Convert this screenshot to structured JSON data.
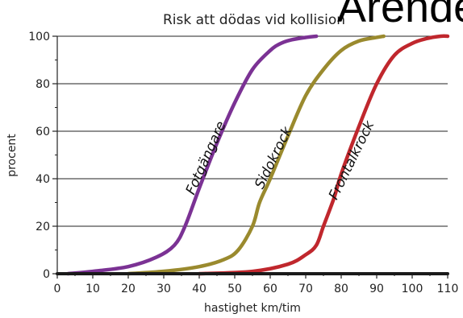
{
  "overlay_text": "Ärende",
  "chart_data": {
    "type": "line",
    "title": "Risk att dödas vid kollision",
    "xlabel": "hastighet km/tim",
    "ylabel": "procent",
    "xlim": [
      0,
      110
    ],
    "ylim": [
      0,
      100
    ],
    "x_ticks": [
      0,
      10,
      20,
      30,
      40,
      50,
      60,
      70,
      80,
      90,
      100,
      110
    ],
    "y_ticks": [
      0,
      20,
      40,
      60,
      80,
      100
    ],
    "grid": "horizontal",
    "legend": "none",
    "series": [
      {
        "name": "Fotgängare",
        "color": "#7b3294",
        "x": [
          3,
          10,
          20,
          28,
          33,
          36,
          40,
          45,
          50,
          55,
          60,
          63,
          66,
          70,
          73
        ],
        "y": [
          0,
          1,
          3,
          7,
          12,
          20,
          36,
          55,
          72,
          86,
          94,
          97,
          98.5,
          99.5,
          100
        ]
      },
      {
        "name": "Sidokrock",
        "color": "#9a8a2e",
        "x": [
          20,
          30,
          40,
          47,
          51,
          55,
          57,
          60,
          65,
          70,
          75,
          80,
          85,
          90,
          92
        ],
        "y": [
          0,
          1,
          3,
          6,
          10,
          20,
          30,
          40,
          58,
          75,
          86,
          94,
          98,
          99.5,
          100
        ]
      },
      {
        "name": "Frontalkrock",
        "color": "#c0272d",
        "x": [
          40,
          55,
          65,
          70,
          73,
          75,
          78,
          80,
          85,
          90,
          95,
          100,
          104,
          108,
          110
        ],
        "y": [
          0,
          1,
          4,
          8,
          12,
          20,
          32,
          42,
          62,
          80,
          92,
          97,
          99,
          100,
          100
        ]
      },
      {
        "name": "",
        "color": "#1a1a1a",
        "x": [
          0,
          110
        ],
        "y": [
          0,
          0
        ]
      }
    ],
    "annotations": [
      {
        "text": "Fotgängare",
        "x": 43,
        "y": 48,
        "rotation": -66,
        "series": 0
      },
      {
        "text": "Sidokrock",
        "x": 62,
        "y": 48,
        "rotation": -64,
        "series": 1
      },
      {
        "text": "Frontalkrock",
        "x": 84,
        "y": 47,
        "rotation": -64,
        "series": 2
      }
    ]
  }
}
